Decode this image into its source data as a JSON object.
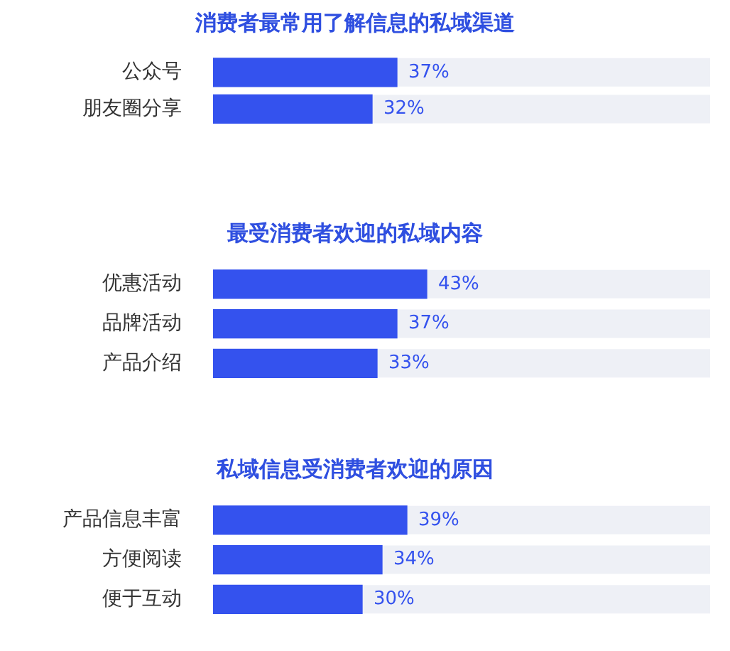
{
  "chart_data": [
    {
      "type": "bar",
      "orientation": "horizontal",
      "title": "消费者最常用了解信息的私域渠道",
      "categories": [
        "公众号",
        "朋友圈分享"
      ],
      "values": [
        37,
        32
      ],
      "value_labels": [
        "37%",
        "32%"
      ],
      "color": "#3452ee",
      "xlim": [
        0,
        100
      ],
      "tick_labels": false,
      "legend": false
    },
    {
      "type": "bar",
      "orientation": "horizontal",
      "title": "最受消费者欢迎的私域内容",
      "categories": [
        "优惠活动",
        "品牌活动",
        "产品介绍"
      ],
      "values": [
        43,
        37,
        33
      ],
      "value_labels": [
        "43%",
        "37%",
        "33%"
      ],
      "color": "#3452ee",
      "xlim": [
        0,
        100
      ],
      "tick_labels": false,
      "legend": false
    },
    {
      "type": "bar",
      "orientation": "horizontal",
      "title": "私域信息受消费者欢迎的原因",
      "categories": [
        "产品信息丰富",
        "方便阅读",
        "便于互动"
      ],
      "values": [
        39,
        34,
        30
      ],
      "value_labels": [
        "39%",
        "34%",
        "30%"
      ],
      "color": "#3452ee",
      "xlim": [
        0,
        100
      ],
      "tick_labels": false,
      "legend": false
    }
  ]
}
